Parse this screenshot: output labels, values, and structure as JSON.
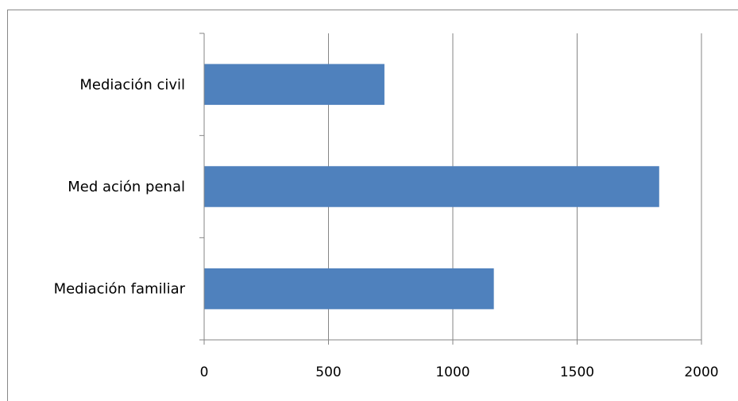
{
  "chart_data": {
    "type": "bar",
    "orientation": "horizontal",
    "categories": [
      "Mediación civil",
      "Med ación penal",
      "Mediación familiar"
    ],
    "values": [
      725,
      1830,
      1165
    ],
    "xlim": [
      0,
      2000
    ],
    "xticks": [
      0,
      500,
      1000,
      1500,
      2000
    ],
    "xtick_labels": [
      "0",
      "500",
      "1000",
      "1500",
      "2000"
    ],
    "grid": "vertical",
    "bar_color": "#4f81bd",
    "grid_color": "#868686",
    "axis_color": "#868686"
  }
}
